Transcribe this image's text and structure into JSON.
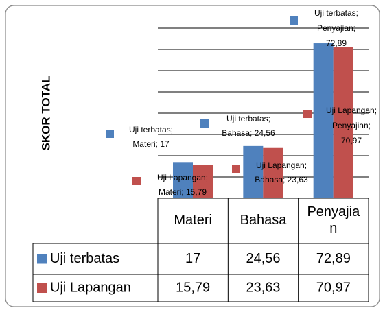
{
  "chart_data": {
    "type": "bar",
    "axis_title": "SKOR TOTAL",
    "categories": [
      "Materi",
      "Bahasa",
      "Penyajian"
    ],
    "category_label_lines": [
      [
        "Materi"
      ],
      [
        "Bahasa"
      ],
      [
        "Penyajia",
        "n"
      ]
    ],
    "series": [
      {
        "name": "Uji terbatas",
        "color": "#4f81bd",
        "values": [
          17,
          24.56,
          72.89
        ],
        "value_labels": [
          "17",
          "24,56",
          "72,89"
        ],
        "data_labels": [
          [
            "Uji terbatas;",
            "Materi; 17"
          ],
          [
            "Uji terbatas;",
            "Bahasa; 24,56"
          ],
          [
            "Uji terbatas;",
            "Penyajian;",
            "72,89"
          ]
        ]
      },
      {
        "name": "Uji Lapangan",
        "color": "#c0504d",
        "values": [
          15.79,
          23.63,
          70.97
        ],
        "value_labels": [
          "15,79",
          "23,63",
          "70,97"
        ],
        "data_labels": [
          [
            "Uji Lapangan;",
            "Materi; 15,79"
          ],
          [
            "Uji Lapangan;",
            "Bahasa; 23,63"
          ],
          [
            "Uji Lapangan;",
            "Penyajian;",
            "70,97"
          ]
        ]
      }
    ],
    "ylim": [
      0,
      80
    ],
    "yticks": [
      0,
      10,
      20,
      30,
      40,
      50,
      60,
      70,
      80
    ],
    "grid": true
  }
}
